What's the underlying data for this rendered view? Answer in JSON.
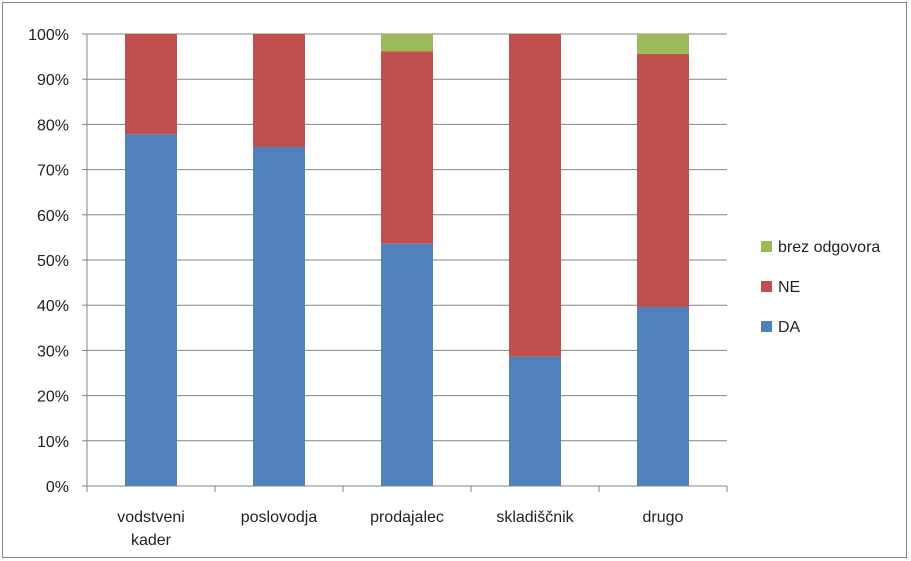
{
  "chart_data": {
    "type": "bar",
    "stacked": true,
    "categories": [
      [
        "vodstveni",
        "kader"
      ],
      [
        "poslovodja"
      ],
      [
        "prodajalec"
      ],
      [
        "skladiščnik"
      ],
      [
        "drugo"
      ]
    ],
    "series": [
      {
        "name": "DA",
        "color": "#4f81bd",
        "values": [
          77.8,
          75,
          53.6,
          28.6,
          39.6
        ]
      },
      {
        "name": "NE",
        "color": "#c0504d",
        "values": [
          22.2,
          25,
          42.6,
          71.4,
          56.0
        ]
      },
      {
        "name": "brez odgovora",
        "color": "#9bbb59",
        "values": [
          0,
          0,
          3.8,
          0,
          4.4
        ]
      }
    ],
    "ylim": [
      0,
      100
    ],
    "ytick_step": 10,
    "ytick_suffix": "%",
    "grid": true,
    "legend_position": "right",
    "legend_order": [
      "brez odgovora",
      "NE",
      "DA"
    ]
  }
}
